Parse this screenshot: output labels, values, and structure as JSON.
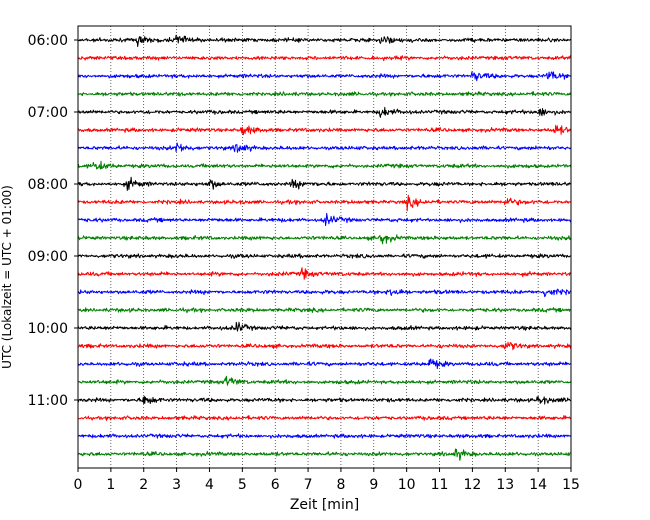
{
  "chart_data": {
    "type": "line",
    "title": "",
    "xlabel": "Zeit  [min]",
    "ylabel": "UTC (Lokalzeit = UTC + 01:00)",
    "xlim": [
      0,
      15
    ],
    "x_ticks": [
      0,
      1,
      2,
      3,
      4,
      5,
      6,
      7,
      8,
      9,
      10,
      11,
      12,
      13,
      14,
      15
    ],
    "x_tick_labels": [
      "0",
      "1",
      "2",
      "3",
      "4",
      "5",
      "6",
      "7",
      "8",
      "9",
      "10",
      "11",
      "12",
      "13",
      "14",
      "15"
    ],
    "grid": "vertical dotted at every minute",
    "y_tick_labels": [
      "06:00",
      "07:00",
      "08:00",
      "09:00",
      "10:00",
      "11:00"
    ],
    "trace_interval_min": 15,
    "trace_colors": [
      "#000000",
      "#ff0000",
      "#0000ff",
      "#008000"
    ],
    "traces": [
      {
        "start": "06:00",
        "color": "#000000",
        "events": [
          1.8,
          3.0,
          9.2
        ]
      },
      {
        "start": "06:15",
        "color": "#ff0000",
        "events": []
      },
      {
        "start": "06:30",
        "color": "#0000ff",
        "events": [
          12.0,
          14.3
        ]
      },
      {
        "start": "06:45",
        "color": "#008000",
        "events": []
      },
      {
        "start": "07:00",
        "color": "#000000",
        "events": [
          9.2,
          14.0
        ]
      },
      {
        "start": "07:15",
        "color": "#ff0000",
        "events": [
          5.0,
          14.5
        ]
      },
      {
        "start": "07:30",
        "color": "#0000ff",
        "events": [
          3.0,
          4.8
        ]
      },
      {
        "start": "07:45",
        "color": "#008000",
        "events": [
          0.5
        ]
      },
      {
        "start": "08:00",
        "color": "#000000",
        "events": [
          1.5,
          4.0,
          6.5
        ]
      },
      {
        "start": "08:15",
        "color": "#ff0000",
        "events": [
          10.0,
          13.0
        ]
      },
      {
        "start": "08:30",
        "color": "#0000ff",
        "events": [
          7.5
        ]
      },
      {
        "start": "08:45",
        "color": "#008000",
        "events": [
          9.2
        ]
      },
      {
        "start": "09:00",
        "color": "#000000",
        "events": []
      },
      {
        "start": "09:15",
        "color": "#ff0000",
        "events": [
          6.8
        ]
      },
      {
        "start": "09:30",
        "color": "#0000ff",
        "events": [
          9.5,
          14.2
        ]
      },
      {
        "start": "09:45",
        "color": "#008000",
        "events": []
      },
      {
        "start": "10:00",
        "color": "#000000",
        "events": [
          4.8
        ]
      },
      {
        "start": "10:15",
        "color": "#ff0000",
        "events": [
          13.0
        ]
      },
      {
        "start": "10:30",
        "color": "#0000ff",
        "events": [
          10.7
        ]
      },
      {
        "start": "10:45",
        "color": "#008000",
        "events": [
          4.5
        ]
      },
      {
        "start": "11:00",
        "color": "#000000",
        "events": [
          2.0,
          14.0
        ]
      },
      {
        "start": "11:15",
        "color": "#ff0000",
        "events": []
      },
      {
        "start": "11:30",
        "color": "#0000ff",
        "events": []
      },
      {
        "start": "11:45",
        "color": "#008000",
        "events": [
          11.5
        ]
      }
    ]
  }
}
